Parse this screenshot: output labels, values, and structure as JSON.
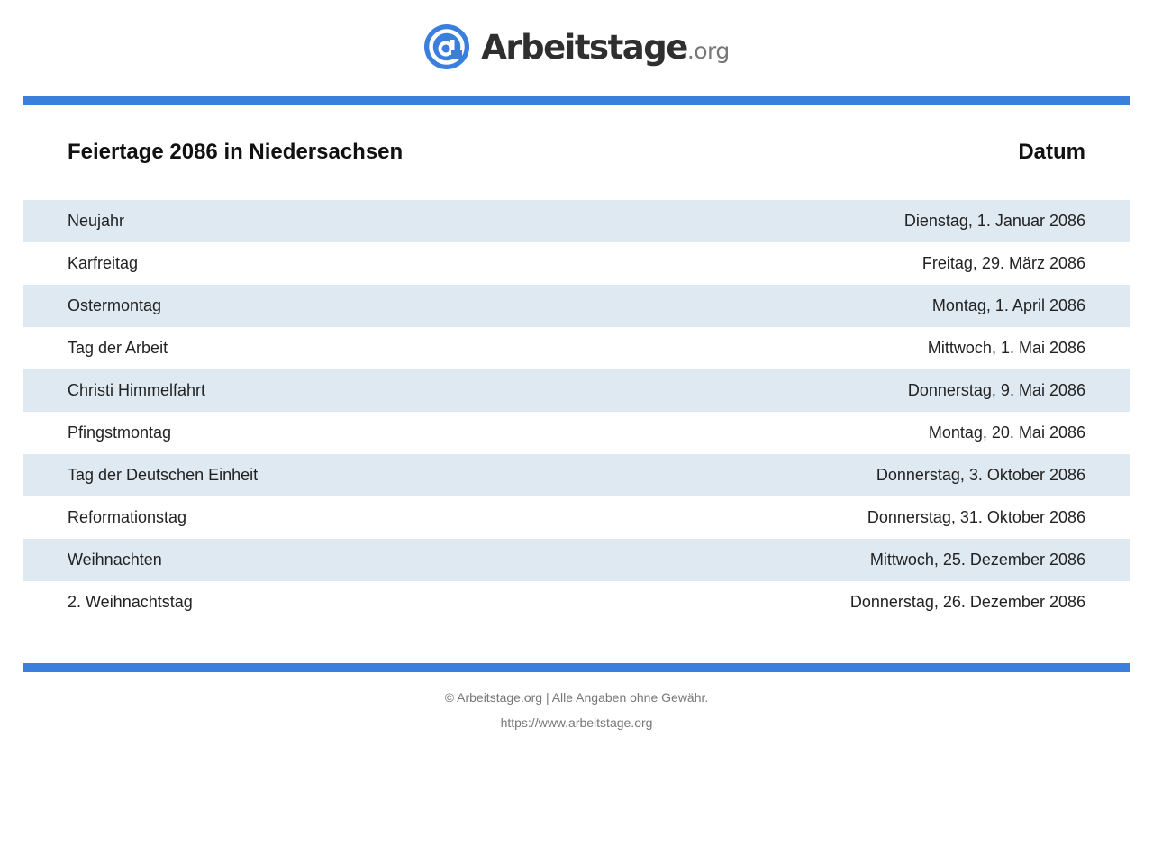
{
  "brand": {
    "name": "Arbeitstage",
    "tld": ".org",
    "icon": "at-sign-logo-icon",
    "color_accent": "#3a7fdc"
  },
  "table": {
    "title": "Feiertage 2086 in Niedersachsen",
    "date_header": "Datum",
    "row_shade_color": "#dfe9f1",
    "rows": [
      {
        "name": "Neujahr",
        "date": "Dienstag, 1. Januar 2086"
      },
      {
        "name": "Karfreitag",
        "date": "Freitag, 29. März 2086"
      },
      {
        "name": "Ostermontag",
        "date": "Montag, 1. April 2086"
      },
      {
        "name": "Tag der Arbeit",
        "date": "Mittwoch, 1. Mai 2086"
      },
      {
        "name": "Christi Himmelfahrt",
        "date": "Donnerstag, 9. Mai 2086"
      },
      {
        "name": "Pfingstmontag",
        "date": "Montag, 20. Mai 2086"
      },
      {
        "name": "Tag der Deutschen Einheit",
        "date": "Donnerstag, 3. Oktober 2086"
      },
      {
        "name": "Reformationstag",
        "date": "Donnerstag, 31. Oktober 2086"
      },
      {
        "name": "Weihnachten",
        "date": "Mittwoch, 25. Dezember 2086"
      },
      {
        "name": "2. Weihnachtstag",
        "date": "Donnerstag, 26. Dezember 2086"
      }
    ]
  },
  "footer": {
    "copyright": "© Arbeitstage.org | Alle Angaben ohne Gewähr.",
    "url": "https://www.arbeitstage.org"
  }
}
